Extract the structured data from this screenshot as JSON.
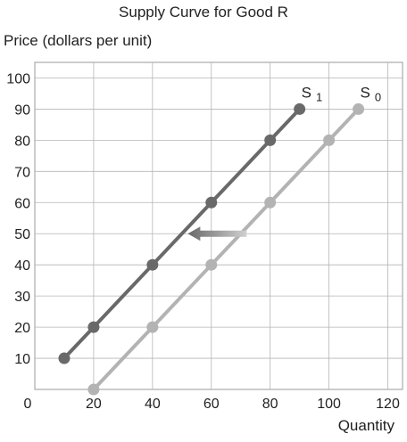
{
  "chart_data": {
    "type": "line",
    "title": "Supply Curve for Good R",
    "ylabel": "Price (dollars per unit)",
    "xlabel": "Quantity",
    "xlim": [
      0,
      125
    ],
    "ylim": [
      0,
      105
    ],
    "xticks": [
      0,
      20,
      40,
      60,
      80,
      100,
      120
    ],
    "yticks": [
      10,
      20,
      30,
      40,
      50,
      60,
      70,
      80,
      90,
      100
    ],
    "grid": true,
    "series": [
      {
        "name": "S",
        "sub": "1",
        "color": "#696969",
        "points": [
          [
            10,
            10
          ],
          [
            20,
            20
          ],
          [
            40,
            40
          ],
          [
            60,
            60
          ],
          [
            80,
            80
          ],
          [
            90,
            90
          ]
        ]
      },
      {
        "name": "S",
        "sub": "0",
        "color": "#b3b3b3",
        "points": [
          [
            20,
            0
          ],
          [
            40,
            20
          ],
          [
            60,
            40
          ],
          [
            80,
            60
          ],
          [
            100,
            80
          ],
          [
            110,
            90
          ]
        ]
      }
    ],
    "annotations": [
      {
        "type": "arrow",
        "from": [
          72,
          50
        ],
        "to": [
          52,
          50
        ],
        "color_start": "#d0d0d0",
        "color_end": "#696969"
      }
    ]
  }
}
